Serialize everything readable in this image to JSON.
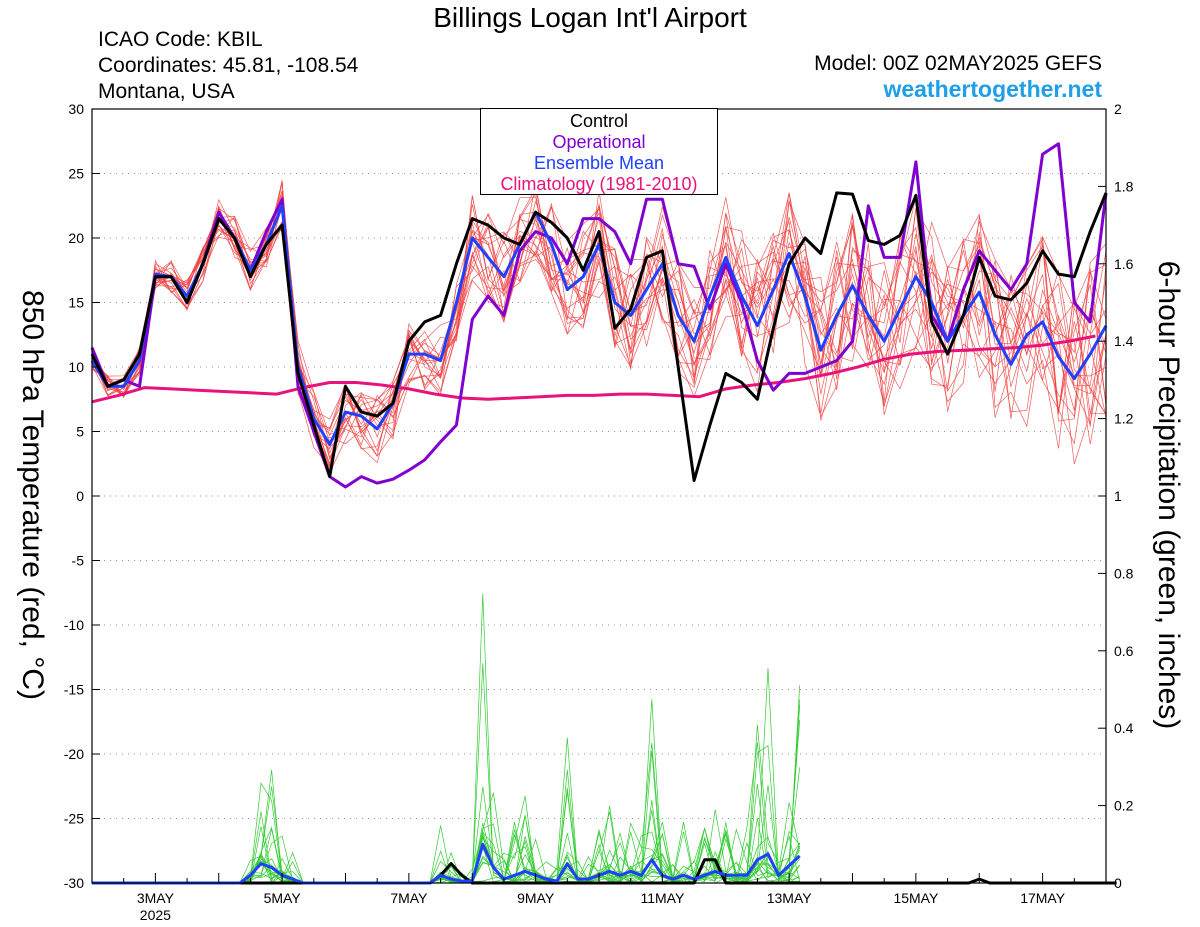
{
  "header": {
    "title": "Billings Logan Int'l Airport",
    "icao": "ICAO Code: KBIL",
    "coords": "Coordinates: 45.81, -108.54",
    "region": "Montana, USA",
    "model": "Model: 00Z 02MAY2025 GEFS",
    "site": "weathertogether.net"
  },
  "chart_data": {
    "type": "line",
    "title": "Billings Logan Int'l Airport",
    "ylabel_left": "850 hPa Temperature (red, °C)",
    "ylabel_right": "6-hour Precipitation (green, inches)",
    "x_hours": {
      "start": 0,
      "end": 384,
      "step": 6
    },
    "x_ticks": [
      {
        "hour": 24,
        "label": "3MAY",
        "sub": "2025"
      },
      {
        "hour": 72,
        "label": "5MAY"
      },
      {
        "hour": 120,
        "label": "7MAY"
      },
      {
        "hour": 168,
        "label": "9MAY"
      },
      {
        "hour": 216,
        "label": "11MAY"
      },
      {
        "hour": 264,
        "label": "13MAY"
      },
      {
        "hour": 312,
        "label": "15MAY"
      },
      {
        "hour": 360,
        "label": "17MAY"
      }
    ],
    "ylim_left": [
      -30,
      30
    ],
    "yticks_left": [
      "30",
      "25",
      "20",
      "15",
      "10",
      "5",
      "0",
      "-5",
      "-10",
      "-15",
      "-20",
      "-25",
      "-30"
    ],
    "ylim_right": [
      0,
      2
    ],
    "yticks_right": [
      "2",
      "1.8",
      "1.6",
      "1.4",
      "1.2",
      "1",
      "0.8",
      "0.6",
      "0.4",
      "0.2",
      "0"
    ],
    "grid": "dotted horizontal",
    "legend": {
      "position": "top-center",
      "items": [
        {
          "label": "Control",
          "color": "#000000"
        },
        {
          "label": "Operational",
          "color": "#8000d0"
        },
        {
          "label": "Ensemble Mean",
          "color": "#2040ff"
        },
        {
          "label": "Climatology (1981-2010)",
          "color": "#e8127a"
        }
      ]
    },
    "colors": {
      "members": "#f04040",
      "precip": "#33cc33",
      "control": "#000000",
      "operational": "#8000d0",
      "mean": "#2040ff",
      "climo": "#e8127a"
    },
    "series": [
      {
        "name": "Control",
        "axis": "temp",
        "values": [
          11,
          8.5,
          9,
          11,
          17,
          17,
          15,
          18,
          21.5,
          20,
          17,
          19.5,
          21,
          9.5,
          5.5,
          1.5,
          8.5,
          6.5,
          6.2,
          7.2,
          12,
          13.5,
          14,
          18,
          21.5,
          21,
          20,
          19.5,
          22,
          21.2,
          20,
          17.5,
          20.5,
          13,
          14.5,
          18.5,
          19,
          10,
          1.2,
          5.5,
          9.5,
          8.8,
          7.5,
          13,
          18,
          20,
          18.8,
          23.5,
          23.4,
          19.8,
          19.5,
          20.2,
          23.3,
          13.5,
          11,
          14,
          18.5,
          15.5,
          15.2,
          16.5,
          19,
          17.2,
          17,
          20.5,
          23.5
        ]
      },
      {
        "name": "Operational",
        "axis": "temp",
        "values": [
          11.5,
          8.5,
          9,
          8.5,
          17,
          17,
          15,
          18,
          22,
          20,
          17.5,
          20.5,
          23,
          8.5,
          5,
          1.5,
          0.7,
          1.5,
          1,
          1.3,
          2,
          2.8,
          4.2,
          5.5,
          13.7,
          15.5,
          14,
          19,
          20.5,
          20,
          18,
          21.5,
          21.5,
          20.5,
          18,
          23,
          23,
          18,
          17.8,
          14.5,
          18,
          15,
          10.5,
          8.2,
          9.5,
          9.5,
          10,
          10.5,
          12,
          22.5,
          18.5,
          18.5,
          25.9,
          14,
          12,
          16,
          19,
          17.5,
          16,
          18,
          26.5,
          27.3,
          15,
          13.5,
          23.5
        ]
      },
      {
        "name": "Ensemble Mean",
        "axis": "temp",
        "values": [
          10.5,
          8.5,
          8.5,
          10.5,
          17.2,
          17,
          15.5,
          18,
          21.5,
          20,
          17.5,
          19.5,
          22.5,
          10,
          6,
          4,
          6.5,
          6.2,
          5.2,
          7.2,
          11,
          11,
          10.5,
          15,
          20,
          18.5,
          17,
          19.5,
          22,
          19.5,
          16,
          17,
          19.5,
          15,
          14,
          16,
          18,
          14,
          12,
          15.5,
          18.5,
          15.5,
          13.2,
          16,
          18.8,
          15.5,
          11.3,
          14,
          16.3,
          14,
          12,
          14.5,
          17,
          15,
          12,
          14,
          15.8,
          12.5,
          10.2,
          12.5,
          13.5,
          10.8,
          9.1,
          11,
          13.2
        ]
      },
      {
        "name": "Climatology (1981-2010)",
        "axis": "temp",
        "values": [
          7.3,
          7.8,
          8.4,
          8.3,
          8.2,
          8.1,
          8.0,
          7.9,
          8.4,
          8.8,
          8.8,
          8.6,
          8.3,
          7.9,
          7.6,
          7.5,
          7.6,
          7.7,
          7.8,
          7.8,
          7.9,
          7.9,
          7.8,
          7.7,
          8.3,
          8.6,
          8.8,
          9.1,
          9.5,
          10.0,
          10.6,
          11.0,
          11.2,
          11.3,
          11.4,
          11.5,
          11.7,
          12.0,
          12.4
        ]
      },
      {
        "name": "Control precip",
        "axis": "precip",
        "values": [
          0,
          0,
          0,
          0,
          0,
          0,
          0,
          0,
          0,
          0,
          0,
          0,
          0,
          0,
          0,
          0,
          0,
          0,
          0,
          0,
          0,
          0,
          0,
          0,
          0,
          0,
          0,
          0,
          0,
          0,
          0,
          0,
          0,
          0.02,
          0.05,
          0.02,
          0,
          0,
          0,
          0,
          0,
          0,
          0,
          0,
          0,
          0,
          0,
          0,
          0,
          0,
          0,
          0,
          0,
          0,
          0,
          0,
          0,
          0,
          0.06,
          0.06,
          0,
          0,
          0,
          0,
          0,
          0,
          0,
          0,
          0,
          0,
          0,
          0,
          0,
          0,
          0,
          0,
          0,
          0,
          0,
          0,
          0,
          0,
          0,
          0,
          0.01,
          0,
          0,
          0,
          0,
          0,
          0,
          0,
          0,
          0,
          0,
          0,
          0,
          0
        ]
      },
      {
        "name": "Ensemble Mean precip",
        "axis": "precip",
        "values": [
          0,
          0,
          0,
          0,
          0,
          0,
          0,
          0,
          0,
          0,
          0,
          0,
          0,
          0,
          0,
          0.02,
          0.05,
          0.04,
          0.02,
          0.01,
          0,
          0,
          0,
          0,
          0,
          0,
          0,
          0,
          0,
          0,
          0,
          0,
          0,
          0.02,
          0.01,
          0.005,
          0.005,
          0.1,
          0.04,
          0.01,
          0.02,
          0.03,
          0.02,
          0.01,
          0.005,
          0.05,
          0.01,
          0.01,
          0.02,
          0.03,
          0.02,
          0.03,
          0.02,
          0.06,
          0.02,
          0.01,
          0.02,
          0.01,
          0.02,
          0.03,
          0.02,
          0.02,
          0.02,
          0.06,
          0.075,
          0.02,
          0.045,
          0.07
        ]
      }
    ]
  }
}
